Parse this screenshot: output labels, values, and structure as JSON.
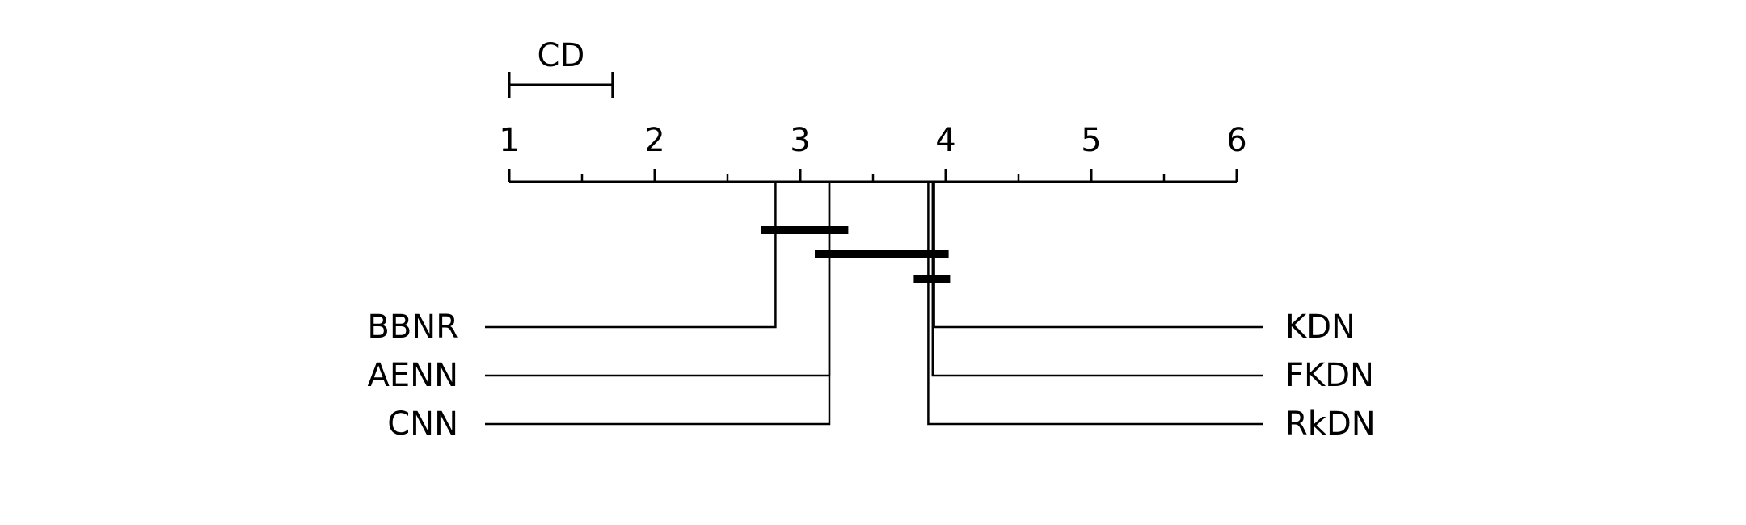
{
  "chart_data": {
    "type": "critical-difference-diagram",
    "axis": {
      "range": [
        1,
        6
      ],
      "tick_labels": [
        "1",
        "2",
        "3",
        "4",
        "5",
        "6"
      ],
      "minor_ticks": [
        1.5,
        2.5,
        3.5,
        4.5,
        5.5
      ]
    },
    "cd": {
      "label": "CD",
      "value": 0.71
    },
    "left_methods": [
      {
        "name": "BBNR",
        "rank": 2.83
      },
      {
        "name": "AENN",
        "rank": 3.2
      },
      {
        "name": "CNN",
        "rank": 3.2
      }
    ],
    "right_methods": [
      {
        "name": "KDN",
        "rank": 3.92
      },
      {
        "name": "FKDN",
        "rank": 3.91
      },
      {
        "name": "RkDN",
        "rank": 3.88
      }
    ],
    "cliques": [
      {
        "from": 2.73,
        "to": 3.33
      },
      {
        "from": 3.1,
        "to": 4.02
      },
      {
        "from": 3.78,
        "to": 4.03
      }
    ]
  }
}
